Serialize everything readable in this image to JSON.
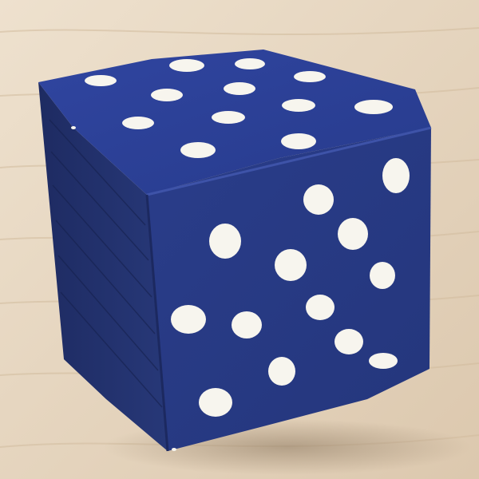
{
  "scene": {
    "subject": "wooden-cube",
    "colors": {
      "table": "#e7d8c3",
      "table_grain": "#d8c3a6",
      "cube_top": "#2c3f93",
      "cube_front": "#263982",
      "cube_left": "#1f2d69",
      "dots": "#f7f5ee"
    },
    "visible_faces": [
      {
        "face": "top",
        "dot_count": 13
      },
      {
        "face": "front",
        "dot_count": 14
      }
    ]
  }
}
